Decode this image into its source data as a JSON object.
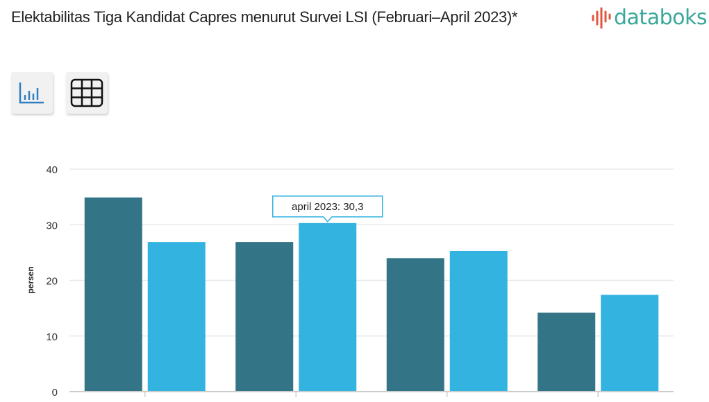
{
  "header": {
    "title": "Elektabilitas Tiga Kandidat Capres menurut Survei LSI (Februari–April 2023)*",
    "logo_text": "databoks"
  },
  "toolbar": {
    "chart_view_icon": "bar-chart-icon",
    "table_view_icon": "table-grid-icon"
  },
  "colors": {
    "series1": "#337486",
    "series2": "#33b3e0",
    "logo_text": "#3aa89a",
    "logo_mark": "#e0563f",
    "tooltip_border": "#33b3e0"
  },
  "chart_data": {
    "type": "bar",
    "title": "Elektabilitas Tiga Kandidat Capres menurut Survei LSI (Februari–April 2023)*",
    "xlabel": "",
    "ylabel": "persen",
    "ylim": [
      0,
      40
    ],
    "yticks": [
      "0",
      "10",
      "20",
      "30",
      "40"
    ],
    "categories": [
      "",
      "",
      "",
      ""
    ],
    "series": [
      {
        "name": "",
        "values": [
          34.9,
          26.9,
          24.0,
          14.2
        ]
      },
      {
        "name": "april 2023",
        "values": [
          26.9,
          30.3,
          25.3,
          17.4
        ]
      }
    ],
    "grid": true,
    "tooltip": {
      "text": "april 2023: 30,3",
      "category_index": 1,
      "series_index": 1
    }
  }
}
